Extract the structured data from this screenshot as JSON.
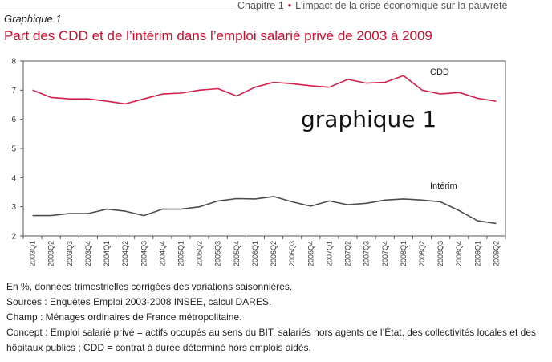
{
  "header": {
    "chapter": "Chapitre 1",
    "chapter_title": "L'impact de la crise économique sur la pauvreté",
    "graph_label": "Graphique 1",
    "title": "Part des CDD et de l’intérim dans l’emploi salarié privé de 2003 à 2009"
  },
  "chart_data": {
    "type": "line",
    "title": "Part des CDD et de l’intérim dans l’emploi salarié privé de 2003 à 2009",
    "watermark": "graphique 1",
    "xlabel": "",
    "ylabel": "",
    "ylim": [
      2,
      8
    ],
    "yticks": [
      2,
      3,
      4,
      5,
      6,
      7,
      8
    ],
    "grid": false,
    "categories": [
      "2003Q1",
      "2003Q2",
      "2003Q3",
      "2003Q4",
      "2004Q1",
      "2004Q2",
      "2004Q3",
      "2004Q4",
      "2005Q1",
      "2005Q2",
      "2005Q3",
      "2005Q4",
      "2006Q1",
      "2006Q2",
      "2006Q3",
      "2006Q4",
      "2007Q1",
      "2007Q2",
      "2007Q3",
      "2007Q4",
      "2008Q1",
      "2008Q2",
      "2008Q3",
      "2008Q4",
      "2009Q1",
      "2009Q2"
    ],
    "series": [
      {
        "name": "CDD",
        "color": "#d4204a",
        "values": [
          7.0,
          6.75,
          6.7,
          6.7,
          6.62,
          6.53,
          6.7,
          6.87,
          6.9,
          7.0,
          7.05,
          6.8,
          7.1,
          7.27,
          7.22,
          7.15,
          7.1,
          7.37,
          7.24,
          7.27,
          7.5,
          7.0,
          6.87,
          6.92,
          6.72,
          6.62
        ]
      },
      {
        "name": "Intérim",
        "color": "#4d4d4d",
        "values": [
          2.7,
          2.7,
          2.77,
          2.77,
          2.92,
          2.85,
          2.7,
          2.92,
          2.92,
          3.0,
          3.2,
          3.28,
          3.27,
          3.35,
          3.17,
          3.02,
          3.2,
          3.07,
          3.12,
          3.23,
          3.27,
          3.23,
          3.17,
          2.87,
          2.52,
          2.43
        ]
      }
    ]
  },
  "notes": [
    "En %, données trimestrielles corrigées des variations saisonnières.",
    "Sources : Enquêtes Emploi 2003-2008 INSEE, calcul DARES.",
    "Champ : Ménages ordinaires de France métropolitaine.",
    "Concept : Emploi salarié privé = actifs occupés au sens du BIT, salariés hors agents de l’État, des collectivités locales et des hôpitaux publics ; CDD = contrat à durée déterminé hors emplois aidés."
  ]
}
